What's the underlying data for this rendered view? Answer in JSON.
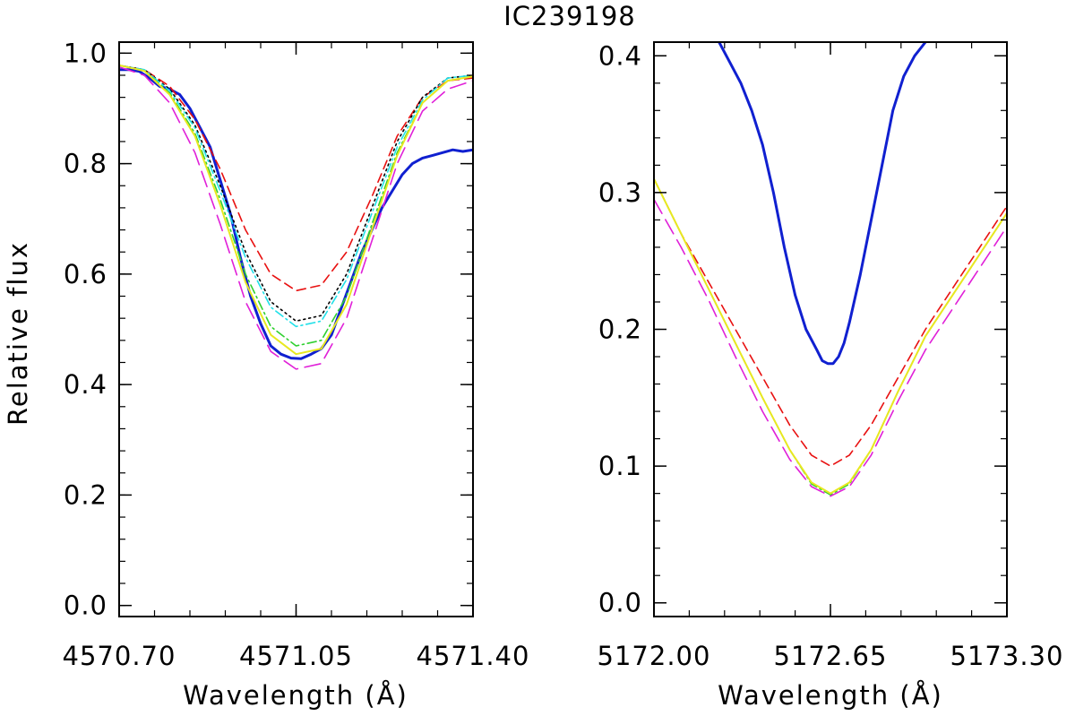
{
  "title": "IC239198",
  "ylabel": "Relative flux",
  "chart_data": [
    {
      "type": "line",
      "panel": "left",
      "xlabel": "Wavelength (Å)",
      "ylabel": "Relative flux",
      "xlim": [
        4570.7,
        4571.4
      ],
      "ylim": [
        -0.02,
        1.02
      ],
      "xticks": [
        4570.7,
        4571.05,
        4571.4
      ],
      "xtick_labels": [
        "4570.70",
        "4571.05",
        "4571.40"
      ],
      "yticks": [
        0.0,
        0.2,
        0.4,
        0.6,
        0.8,
        1.0
      ],
      "ytick_labels": [
        "0.0",
        "0.2",
        "0.4",
        "0.6",
        "0.8",
        "1.0"
      ],
      "series": [
        {
          "name": "observed",
          "color": "#1020d0",
          "dash": "solid",
          "width": 3,
          "x": [
            4570.7,
            4570.72,
            4570.74,
            4570.76,
            4570.78,
            4570.8,
            4570.82,
            4570.84,
            4570.86,
            4570.88,
            4570.9,
            4570.92,
            4570.94,
            4570.96,
            4570.98,
            4571.0,
            4571.02,
            4571.04,
            4571.06,
            4571.08,
            4571.1,
            4571.12,
            4571.14,
            4571.16,
            4571.18,
            4571.2,
            4571.22,
            4571.24,
            4571.26,
            4571.28,
            4571.3,
            4571.32,
            4571.34,
            4571.36,
            4571.38,
            4571.4
          ],
          "y": [
            0.97,
            0.97,
            0.967,
            0.955,
            0.94,
            0.935,
            0.925,
            0.9,
            0.865,
            0.83,
            0.77,
            0.71,
            0.63,
            0.56,
            0.51,
            0.47,
            0.455,
            0.448,
            0.447,
            0.455,
            0.465,
            0.49,
            0.54,
            0.59,
            0.64,
            0.68,
            0.72,
            0.75,
            0.78,
            0.8,
            0.81,
            0.815,
            0.82,
            0.825,
            0.822,
            0.825
          ]
        },
        {
          "name": "model dashed (red)",
          "color": "#e81010",
          "dash": "10,6",
          "width": 1.6,
          "x": [
            4570.7,
            4570.75,
            4570.8,
            4570.85,
            4570.9,
            4570.95,
            4571.0,
            4571.05,
            4571.1,
            4571.15,
            4571.2,
            4571.25,
            4571.3,
            4571.35,
            4571.4
          ],
          "y": [
            0.978,
            0.97,
            0.94,
            0.88,
            0.79,
            0.68,
            0.6,
            0.57,
            0.58,
            0.64,
            0.74,
            0.85,
            0.92,
            0.95,
            0.955
          ]
        },
        {
          "name": "model dotted (black)",
          "color": "#000000",
          "dash": "2,4",
          "width": 1.6,
          "x": [
            4570.7,
            4570.75,
            4570.8,
            4570.85,
            4570.9,
            4570.95,
            4571.0,
            4571.05,
            4571.1,
            4571.15,
            4571.2,
            4571.25,
            4571.3,
            4571.35,
            4571.4
          ],
          "y": [
            0.978,
            0.97,
            0.935,
            0.87,
            0.76,
            0.64,
            0.55,
            0.515,
            0.525,
            0.6,
            0.72,
            0.84,
            0.92,
            0.955,
            0.96
          ]
        },
        {
          "name": "model dash-dot (cyan)",
          "color": "#20e0e8",
          "dash": "10,4,2,4",
          "width": 1.6,
          "x": [
            4570.7,
            4570.75,
            4570.8,
            4570.85,
            4570.9,
            4570.95,
            4571.0,
            4571.05,
            4571.1,
            4571.15,
            4571.2,
            4571.25,
            4571.3,
            4571.35,
            4571.4
          ],
          "y": [
            0.978,
            0.97,
            0.932,
            0.865,
            0.75,
            0.63,
            0.54,
            0.505,
            0.515,
            0.59,
            0.71,
            0.83,
            0.915,
            0.955,
            0.96
          ]
        },
        {
          "name": "model dash-dot (green)",
          "color": "#30d030",
          "dash": "10,4,2,4",
          "width": 1.6,
          "x": [
            4570.7,
            4570.75,
            4570.8,
            4570.85,
            4570.9,
            4570.95,
            4571.0,
            4571.05,
            4571.1,
            4571.15,
            4571.2,
            4571.25,
            4571.3,
            4571.35,
            4571.4
          ],
          "y": [
            0.978,
            0.968,
            0.928,
            0.855,
            0.735,
            0.6,
            0.505,
            0.47,
            0.48,
            0.56,
            0.69,
            0.82,
            0.91,
            0.95,
            0.958
          ]
        },
        {
          "name": "model solid (yellow)",
          "color": "#e8e820",
          "dash": "solid",
          "width": 2,
          "x": [
            4570.7,
            4570.75,
            4570.8,
            4570.85,
            4570.9,
            4570.95,
            4571.0,
            4571.05,
            4571.1,
            4571.15,
            4571.2,
            4571.25,
            4571.3,
            4571.35,
            4571.4
          ],
          "y": [
            0.978,
            0.968,
            0.925,
            0.85,
            0.725,
            0.585,
            0.49,
            0.455,
            0.465,
            0.545,
            0.68,
            0.815,
            0.91,
            0.95,
            0.958
          ]
        },
        {
          "name": "model long-dash (magenta)",
          "color": "#e020d8",
          "dash": "18,8",
          "width": 1.6,
          "x": [
            4570.7,
            4570.75,
            4570.8,
            4570.85,
            4570.9,
            4570.95,
            4571.0,
            4571.05,
            4571.1,
            4571.15,
            4571.2,
            4571.25,
            4571.3,
            4571.35,
            4571.4
          ],
          "y": [
            0.975,
            0.96,
            0.91,
            0.82,
            0.69,
            0.55,
            0.46,
            0.428,
            0.438,
            0.52,
            0.66,
            0.8,
            0.895,
            0.935,
            0.95
          ]
        }
      ]
    },
    {
      "type": "line",
      "panel": "right",
      "xlabel": "Wavelength (Å)",
      "xlim": [
        5172.0,
        5173.3
      ],
      "ylim": [
        -0.01,
        0.41
      ],
      "xticks": [
        5172.0,
        5172.65,
        5173.3
      ],
      "xtick_labels": [
        "5172.00",
        "5172.65",
        "5173.30"
      ],
      "yticks": [
        0.0,
        0.1,
        0.2,
        0.3,
        0.4
      ],
      "ytick_labels": [
        "0.0",
        "0.1",
        "0.2",
        "0.3",
        "0.4"
      ],
      "series": [
        {
          "name": "observed",
          "color": "#1020d0",
          "dash": "solid",
          "width": 3,
          "x": [
            5172.24,
            5172.28,
            5172.32,
            5172.36,
            5172.4,
            5172.44,
            5172.48,
            5172.52,
            5172.56,
            5172.6,
            5172.62,
            5172.64,
            5172.66,
            5172.68,
            5172.7,
            5172.72,
            5172.76,
            5172.8,
            5172.84,
            5172.88,
            5172.92,
            5172.96,
            5173.0
          ],
          "y": [
            0.41,
            0.395,
            0.38,
            0.36,
            0.335,
            0.3,
            0.26,
            0.225,
            0.2,
            0.185,
            0.177,
            0.175,
            0.175,
            0.18,
            0.19,
            0.205,
            0.24,
            0.28,
            0.32,
            0.36,
            0.385,
            0.4,
            0.41
          ]
        },
        {
          "name": "model dashed (red)",
          "color": "#e81010",
          "dash": "10,6",
          "width": 1.6,
          "x": [
            5172.0,
            5172.1,
            5172.2,
            5172.3,
            5172.4,
            5172.5,
            5172.58,
            5172.65,
            5172.72,
            5172.8,
            5172.9,
            5173.0,
            5173.1,
            5173.2,
            5173.3
          ],
          "y": [
            0.31,
            0.27,
            0.235,
            0.2,
            0.165,
            0.13,
            0.108,
            0.1,
            0.108,
            0.13,
            0.165,
            0.2,
            0.23,
            0.26,
            0.29
          ]
        },
        {
          "name": "model dash-dot (green)",
          "color": "#30d030",
          "dash": "10,4,2,4",
          "width": 1.6,
          "x": [
            5172.0,
            5172.1,
            5172.2,
            5172.3,
            5172.4,
            5172.5,
            5172.58,
            5172.65,
            5172.72,
            5172.8,
            5172.9,
            5173.0,
            5173.1,
            5173.2,
            5173.3
          ],
          "y": [
            0.31,
            0.27,
            0.23,
            0.19,
            0.15,
            0.112,
            0.087,
            0.079,
            0.087,
            0.112,
            0.155,
            0.195,
            0.225,
            0.255,
            0.285
          ]
        },
        {
          "name": "model solid (yellow)",
          "color": "#e8e820",
          "dash": "solid",
          "width": 2,
          "x": [
            5172.0,
            5172.1,
            5172.2,
            5172.3,
            5172.4,
            5172.5,
            5172.58,
            5172.65,
            5172.72,
            5172.8,
            5172.9,
            5173.0,
            5173.1,
            5173.2,
            5173.3
          ],
          "y": [
            0.31,
            0.27,
            0.23,
            0.19,
            0.15,
            0.112,
            0.088,
            0.08,
            0.088,
            0.112,
            0.155,
            0.195,
            0.225,
            0.255,
            0.285
          ]
        },
        {
          "name": "model long-dash (magenta)",
          "color": "#e020d8",
          "dash": "18,8",
          "width": 1.6,
          "x": [
            5172.0,
            5172.1,
            5172.2,
            5172.3,
            5172.4,
            5172.5,
            5172.58,
            5172.65,
            5172.72,
            5172.8,
            5172.9,
            5173.0,
            5173.1,
            5173.2,
            5173.3
          ],
          "y": [
            0.295,
            0.26,
            0.222,
            0.18,
            0.14,
            0.105,
            0.085,
            0.078,
            0.085,
            0.108,
            0.148,
            0.185,
            0.215,
            0.245,
            0.275
          ]
        }
      ]
    }
  ]
}
